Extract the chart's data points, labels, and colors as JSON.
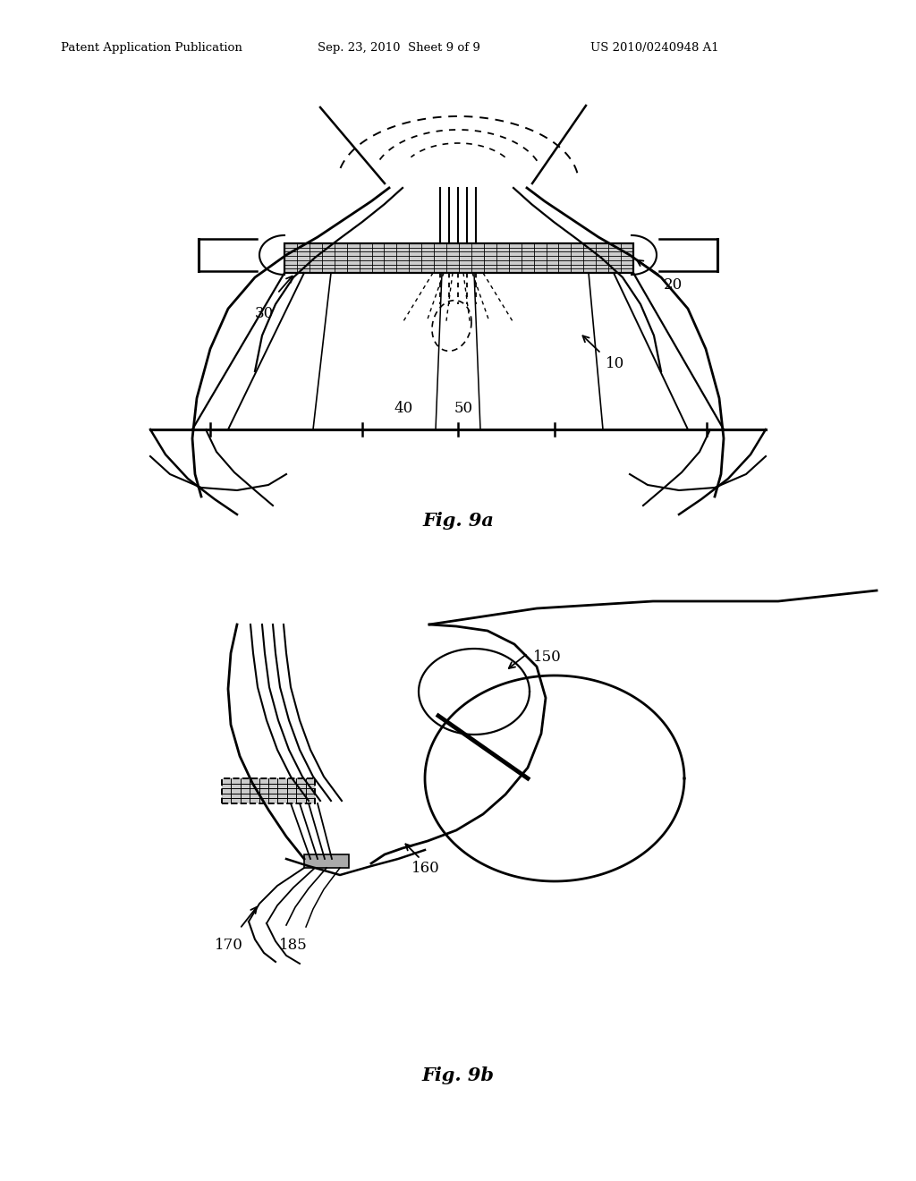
{
  "bg_color": "#ffffff",
  "line_color": "#000000",
  "header_text": "Patent Application Publication",
  "header_date": "Sep. 23, 2010  Sheet 9 of 9",
  "header_patent": "US 2010/0240948 A1",
  "fig9a_label": "Fig. 9a",
  "fig9b_label": "Fig. 9b"
}
